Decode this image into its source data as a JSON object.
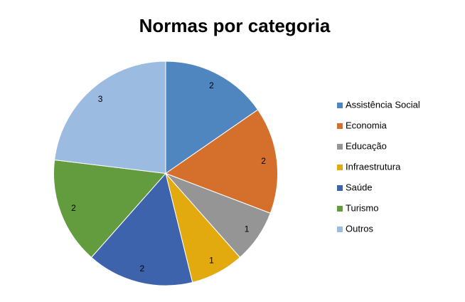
{
  "chart_data": {
    "type": "pie",
    "title": "Normas por categoria",
    "categories": [
      "Assistência Social",
      "Economia",
      "Educação",
      "Infraestrutura",
      "Saúde",
      "Turismo",
      "Outros"
    ],
    "values": [
      2,
      2,
      1,
      1,
      2,
      2,
      3
    ],
    "colors": [
      "#4f86c0",
      "#d4702c",
      "#959595",
      "#e2aa0e",
      "#3d63ad",
      "#629c3f",
      "#9cbbe1"
    ],
    "legend": "right"
  }
}
